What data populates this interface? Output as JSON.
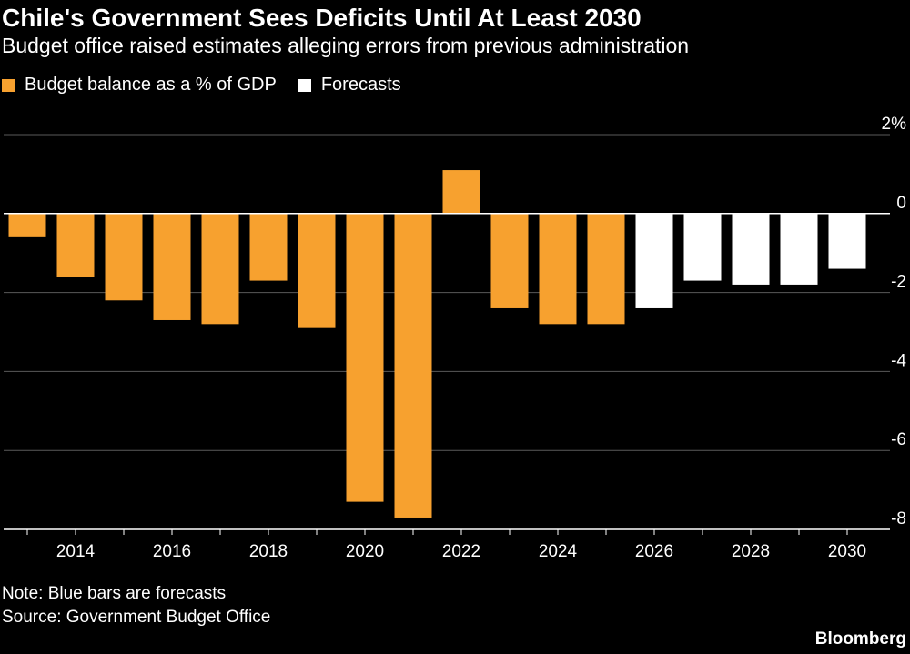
{
  "chart_data": {
    "type": "bar",
    "title": "Chile's Government Sees Deficits Until At Least 2030",
    "subtitle": "Budget office raised estimates alleging errors from previous administration",
    "legend": [
      {
        "label": "Budget balance as a % of GDP",
        "color": "#f7a12f"
      },
      {
        "label": "Forecasts",
        "color": "#ffffff"
      }
    ],
    "categories": [
      2013,
      2014,
      2015,
      2016,
      2017,
      2018,
      2019,
      2020,
      2021,
      2022,
      2023,
      2024,
      2025,
      2026,
      2027,
      2028,
      2029,
      2030
    ],
    "values": [
      -0.6,
      -1.6,
      -2.2,
      -2.7,
      -2.8,
      -1.7,
      -2.9,
      -7.3,
      -7.7,
      1.1,
      -2.4,
      -2.8,
      -2.8,
      -2.4,
      -1.7,
      -1.8,
      -1.8,
      -1.4
    ],
    "forecast_from": 2026,
    "x_tick_labels": [
      "2014",
      "2016",
      "2018",
      "2020",
      "2022",
      "2024",
      "2026",
      "2028",
      "2030"
    ],
    "y_ticks": [
      2,
      0,
      -2,
      -4,
      -6,
      -8
    ],
    "y_tick_labels": [
      "2%",
      "0",
      "-2",
      "-4",
      "-6",
      "-8"
    ],
    "ylim": [
      -8,
      2
    ],
    "grid": true,
    "axis_side": "right",
    "colors": {
      "actual": "#f7a12f",
      "forecast": "#ffffff",
      "grid": "#5a5a5a",
      "background": "#000000"
    }
  },
  "footer": {
    "note": "Note: Blue bars are forecasts",
    "source": "Source: Government Budget Office",
    "brand": "Bloomberg"
  }
}
